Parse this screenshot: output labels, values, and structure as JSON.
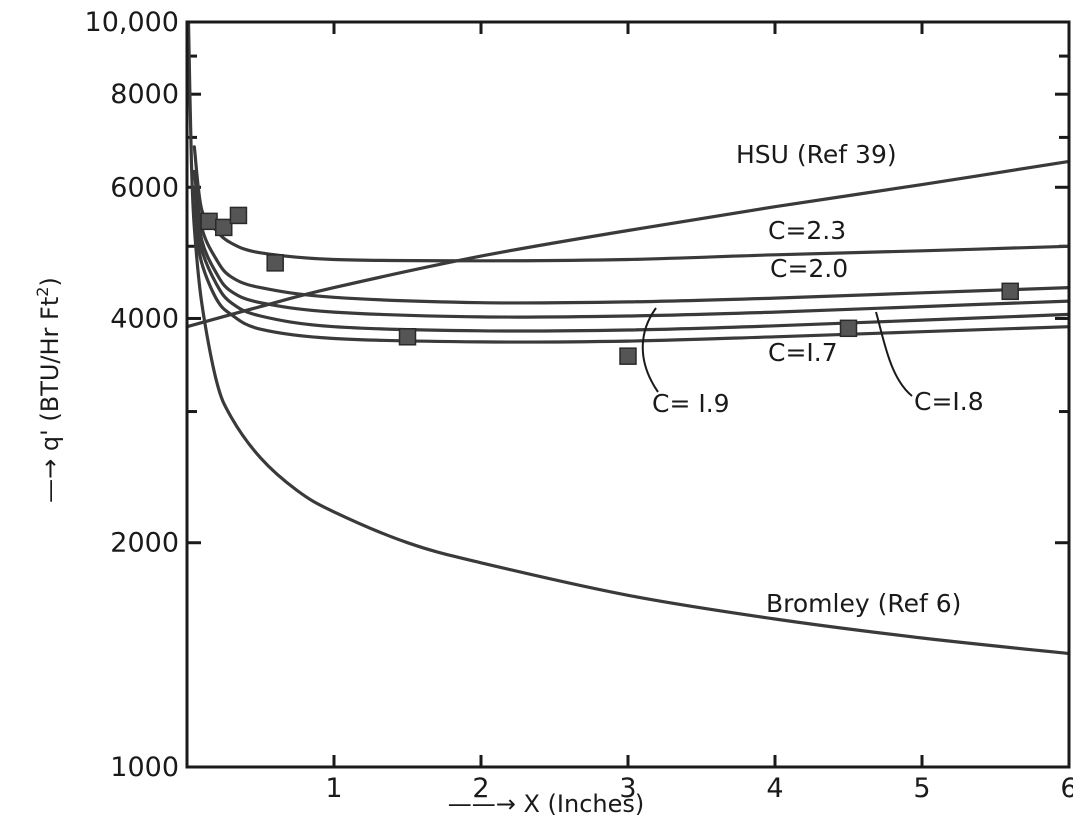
{
  "chart_data": {
    "type": "line",
    "title": "",
    "xlabel": "X (Inches)",
    "ylabel": "q' (BTU/Hr Ft²)",
    "xlim": [
      0,
      6
    ],
    "ylim": [
      1000,
      10000
    ],
    "yscale": "log",
    "grid": false,
    "x_ticks": [
      1,
      2,
      3,
      4,
      5,
      6
    ],
    "y_tick_labels": [
      {
        "value": 1000,
        "label": "1000"
      },
      {
        "value": 2000,
        "label": "2000"
      },
      {
        "value": 4000,
        "label": "4000"
      },
      {
        "value": 6000,
        "label": "6000"
      },
      {
        "value": 8000,
        "label": "8000"
      },
      {
        "value": 10000,
        "label": "10,000"
      }
    ],
    "series": [
      {
        "name": "HSU (Ref 39)",
        "x": [
          0,
          0.5,
          1,
          2,
          3,
          4,
          5,
          6
        ],
        "y": [
          3900,
          4150,
          4400,
          4850,
          5250,
          5650,
          6050,
          6500
        ]
      },
      {
        "name": "C=2.3",
        "x": [
          0.05,
          0.1,
          0.2,
          0.3,
          0.5,
          1,
          2,
          3,
          4,
          5,
          6
        ],
        "y": [
          6800,
          5600,
          5250,
          5050,
          4900,
          4800,
          4780,
          4800,
          4870,
          4930,
          5000
        ]
      },
      {
        "name": "C=2.0",
        "x": [
          0.05,
          0.1,
          0.2,
          0.3,
          0.5,
          1,
          2,
          3,
          4,
          5,
          6
        ],
        "y": [
          6300,
          5300,
          4800,
          4550,
          4400,
          4270,
          4200,
          4210,
          4260,
          4330,
          4400
        ]
      },
      {
        "name": "C=1.9",
        "x": [
          0.05,
          0.1,
          0.2,
          0.3,
          0.5,
          1,
          2,
          3,
          4,
          5,
          6
        ],
        "y": [
          6000,
          5100,
          4600,
          4350,
          4200,
          4080,
          4020,
          4030,
          4080,
          4150,
          4220
        ]
      },
      {
        "name": "C=1.8",
        "x": [
          0.05,
          0.1,
          0.2,
          0.3,
          0.5,
          1,
          2,
          3,
          4,
          5,
          6
        ],
        "y": [
          5700,
          4950,
          4450,
          4200,
          4030,
          3900,
          3850,
          3860,
          3910,
          3980,
          4050
        ]
      },
      {
        "name": "C=1.7",
        "x": [
          0.05,
          0.1,
          0.2,
          0.3,
          0.5,
          1,
          2,
          3,
          4,
          5,
          6
        ],
        "y": [
          5400,
          4750,
          4250,
          4050,
          3870,
          3760,
          3720,
          3730,
          3780,
          3840,
          3900
        ]
      },
      {
        "name": "Bromley (Ref 6)",
        "x": [
          0.01,
          0.03,
          0.05,
          0.1,
          0.2,
          0.3,
          0.5,
          0.75,
          1,
          1.5,
          2,
          3,
          4,
          5,
          6
        ],
        "y": [
          10000,
          6500,
          5300,
          4200,
          3300,
          2950,
          2600,
          2350,
          2200,
          2000,
          1880,
          1700,
          1580,
          1490,
          1420
        ]
      }
    ],
    "data_points": {
      "x": [
        0.15,
        0.25,
        0.35,
        0.6,
        1.5,
        3.0,
        4.5,
        5.6
      ],
      "y": [
        5400,
        5300,
        5500,
        4750,
        3780,
        3560,
        3880,
        4350
      ]
    },
    "annotations": [
      "HSU (Ref 39)",
      "C=2.3",
      "C=2.0",
      "C=1.7",
      "C= I.9",
      "C=I.8",
      "Bromley (Ref 6)"
    ]
  },
  "labels": {
    "x_axis": "——→ X (Inches)",
    "y_axis": "—→ q' (BTU/Hr Ft",
    "y_axis_sup": "2",
    "y_axis_close": ")",
    "hsu": "HSU (Ref 39)",
    "c23": "C=2.3",
    "c20": "C=2.0",
    "c17": "C=I.7",
    "c19": "C= I.9",
    "c18": "C=I.8",
    "bromley": "Bromley (Ref 6)"
  }
}
